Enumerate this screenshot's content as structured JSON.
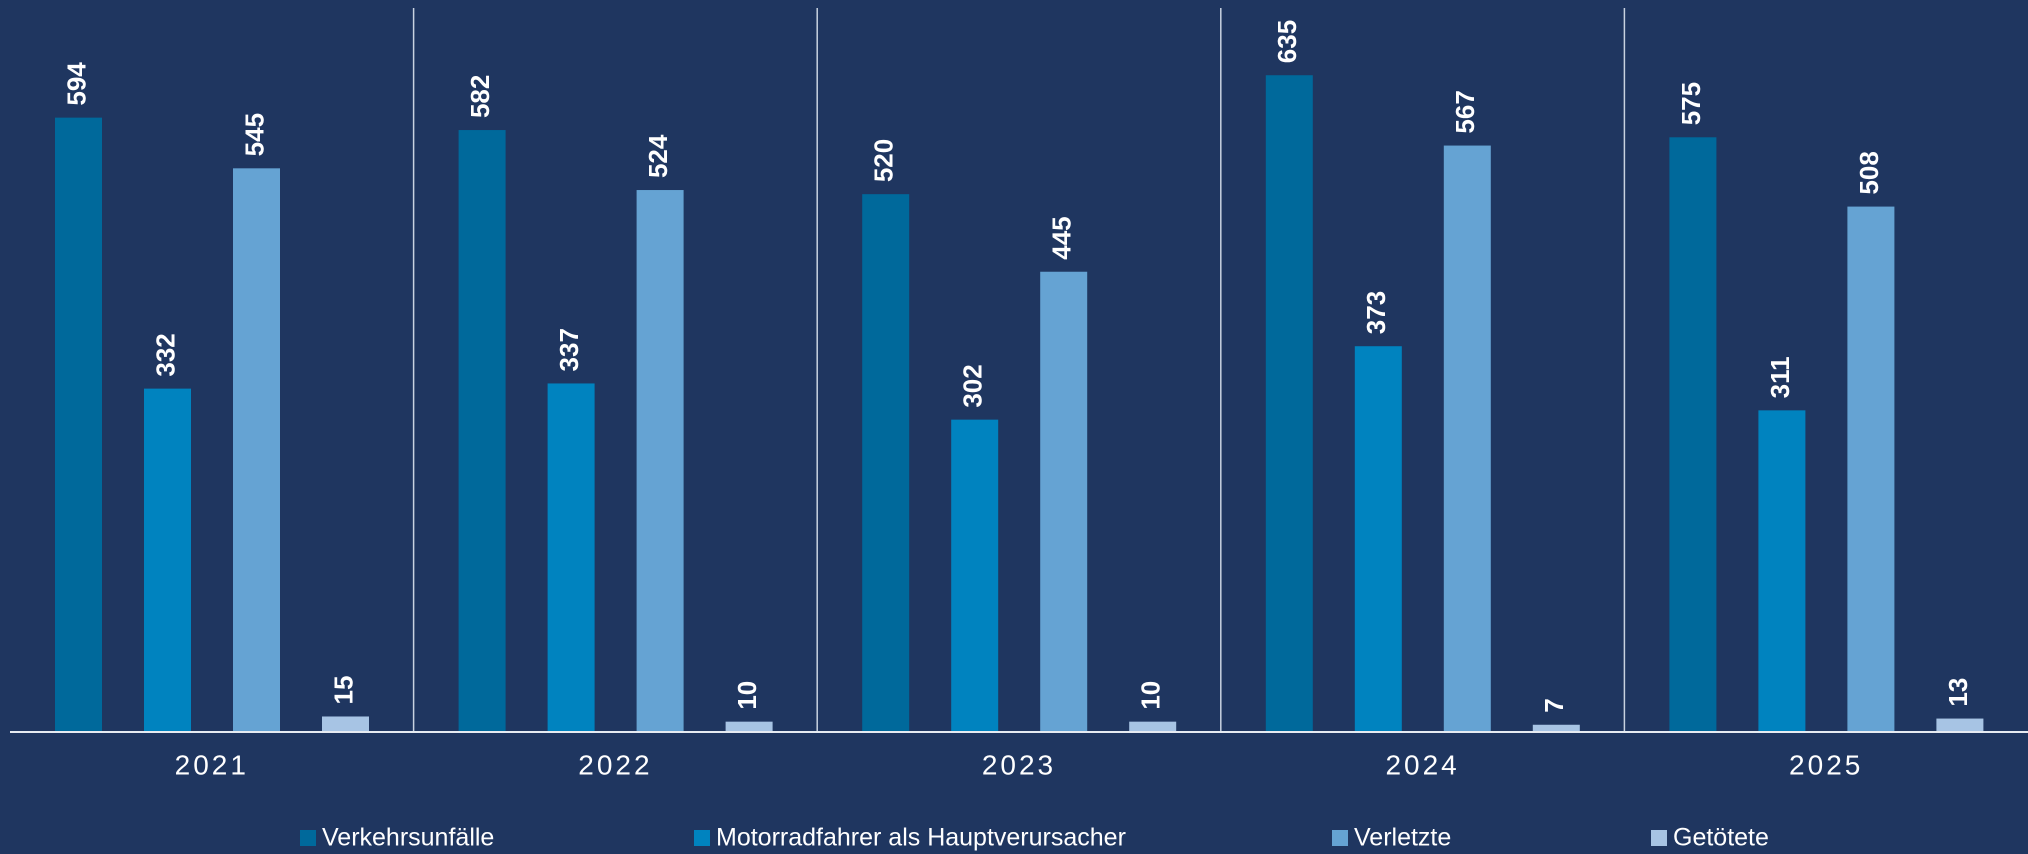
{
  "chart_data": {
    "type": "bar",
    "categories": [
      "2021",
      "2022",
      "2023",
      "2024",
      "2025"
    ],
    "series": [
      {
        "name": "Verkehrsunfälle",
        "color": "#00699b",
        "values": [
          594,
          582,
          520,
          635,
          575
        ]
      },
      {
        "name": "Motorradfahrer als Hauptverursacher",
        "color": "#0083bf",
        "values": [
          332,
          337,
          302,
          373,
          311
        ]
      },
      {
        "name": "Verletzte",
        "color": "#65a3d3",
        "values": [
          545,
          524,
          445,
          567,
          508
        ]
      },
      {
        "name": "Getötete",
        "color": "#a7c4e4",
        "values": [
          15,
          10,
          10,
          7,
          13
        ]
      }
    ],
    "ylim": [
      0,
      700
    ]
  }
}
